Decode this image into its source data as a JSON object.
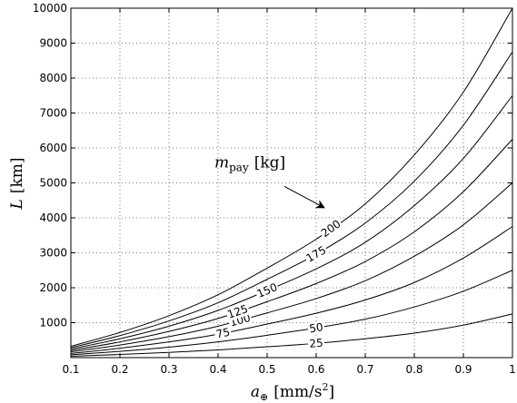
{
  "chart_data": {
    "type": "line",
    "xlabel": "a⊕ [mm/s²]",
    "xlabel_main": "a",
    "xlabel_sub": "⊕",
    "xlabel_unit": "[mm/s",
    "xlabel_exp": "2",
    "xlabel_close": "]",
    "ylabel": "L [km]",
    "ylabel_main": "L",
    "ylabel_unit": "[km]",
    "xlim": [
      0.1,
      1.0
    ],
    "ylim": [
      0,
      10000
    ],
    "xticks": [
      0.1,
      0.2,
      0.3,
      0.4,
      0.5,
      0.6,
      0.7,
      0.8,
      0.9,
      1.0
    ],
    "xtick_labels": [
      "0.1",
      "0.2",
      "0.3",
      "0.4",
      "0.5",
      "0.6",
      "0.7",
      "0.8",
      "0.9",
      "1"
    ],
    "yticks": [
      1000,
      2000,
      3000,
      4000,
      5000,
      6000,
      7000,
      8000,
      9000,
      10000
    ],
    "ytick_labels": [
      "1000",
      "2000",
      "3000",
      "4000",
      "5000",
      "6000",
      "7000",
      "8000",
      "9000",
      "10000"
    ],
    "grid": true,
    "annotation": {
      "text": "m_pay [kg]",
      "main": "m",
      "sub": "pay",
      "unit": "[kg]",
      "arrow_from": [
        0.535,
        4900
      ],
      "arrow_to": [
        0.615,
        4300
      ]
    },
    "series": [
      {
        "label": "25",
        "label_x": 0.6,
        "points": [
          [
            0.1,
            40
          ],
          [
            0.2,
            90
          ],
          [
            0.3,
            150
          ],
          [
            0.4,
            220
          ],
          [
            0.5,
            310
          ],
          [
            0.6,
            410
          ],
          [
            0.7,
            540
          ],
          [
            0.8,
            700
          ],
          [
            0.9,
            930
          ],
          [
            1.0,
            1250
          ]
        ]
      },
      {
        "label": "50",
        "label_x": 0.6,
        "points": [
          [
            0.1,
            80
          ],
          [
            0.2,
            180
          ],
          [
            0.3,
            300
          ],
          [
            0.4,
            450
          ],
          [
            0.5,
            640
          ],
          [
            0.6,
            850
          ],
          [
            0.7,
            1100
          ],
          [
            0.8,
            1450
          ],
          [
            0.9,
            1900
          ],
          [
            1.0,
            2500
          ]
        ]
      },
      {
        "label": "75",
        "label_x": 0.41,
        "points": [
          [
            0.1,
            120
          ],
          [
            0.2,
            270
          ],
          [
            0.3,
            450
          ],
          [
            0.4,
            670
          ],
          [
            0.5,
            960
          ],
          [
            0.6,
            1270
          ],
          [
            0.7,
            1650
          ],
          [
            0.8,
            2150
          ],
          [
            0.9,
            2850
          ],
          [
            1.0,
            3750
          ]
        ]
      },
      {
        "label": "100",
        "label_x": 0.445,
        "points": [
          [
            0.1,
            165
          ],
          [
            0.2,
            360
          ],
          [
            0.3,
            600
          ],
          [
            0.4,
            900
          ],
          [
            0.5,
            1280
          ],
          [
            0.6,
            1690
          ],
          [
            0.7,
            2200
          ],
          [
            0.8,
            2900
          ],
          [
            0.9,
            3800
          ],
          [
            1.0,
            5000
          ]
        ]
      },
      {
        "label": "125",
        "label_x": 0.44,
        "points": [
          [
            0.1,
            205
          ],
          [
            0.2,
            450
          ],
          [
            0.3,
            750
          ],
          [
            0.4,
            1120
          ],
          [
            0.5,
            1600
          ],
          [
            0.6,
            2120
          ],
          [
            0.7,
            2750
          ],
          [
            0.8,
            3600
          ],
          [
            0.9,
            4750
          ],
          [
            1.0,
            6250
          ]
        ]
      },
      {
        "label": "150",
        "label_x": 0.5,
        "points": [
          [
            0.1,
            245
          ],
          [
            0.2,
            540
          ],
          [
            0.3,
            900
          ],
          [
            0.4,
            1350
          ],
          [
            0.5,
            1920
          ],
          [
            0.6,
            2540
          ],
          [
            0.7,
            3300
          ],
          [
            0.8,
            4350
          ],
          [
            0.9,
            5700
          ],
          [
            1.0,
            7500
          ]
        ]
      },
      {
        "label": "175",
        "label_x": 0.6,
        "points": [
          [
            0.1,
            285
          ],
          [
            0.2,
            630
          ],
          [
            0.3,
            1050
          ],
          [
            0.4,
            1570
          ],
          [
            0.5,
            2240
          ],
          [
            0.6,
            2960
          ],
          [
            0.7,
            3850
          ],
          [
            0.8,
            5050
          ],
          [
            0.9,
            6650
          ],
          [
            1.0,
            8750
          ]
        ]
      },
      {
        "label": "200",
        "label_x": 0.63,
        "points": [
          [
            0.1,
            325
          ],
          [
            0.2,
            720
          ],
          [
            0.3,
            1200
          ],
          [
            0.4,
            1800
          ],
          [
            0.5,
            2560
          ],
          [
            0.6,
            3390
          ],
          [
            0.7,
            4400
          ],
          [
            0.8,
            5800
          ],
          [
            0.9,
            7600
          ],
          [
            1.0,
            10000
          ]
        ]
      }
    ]
  }
}
